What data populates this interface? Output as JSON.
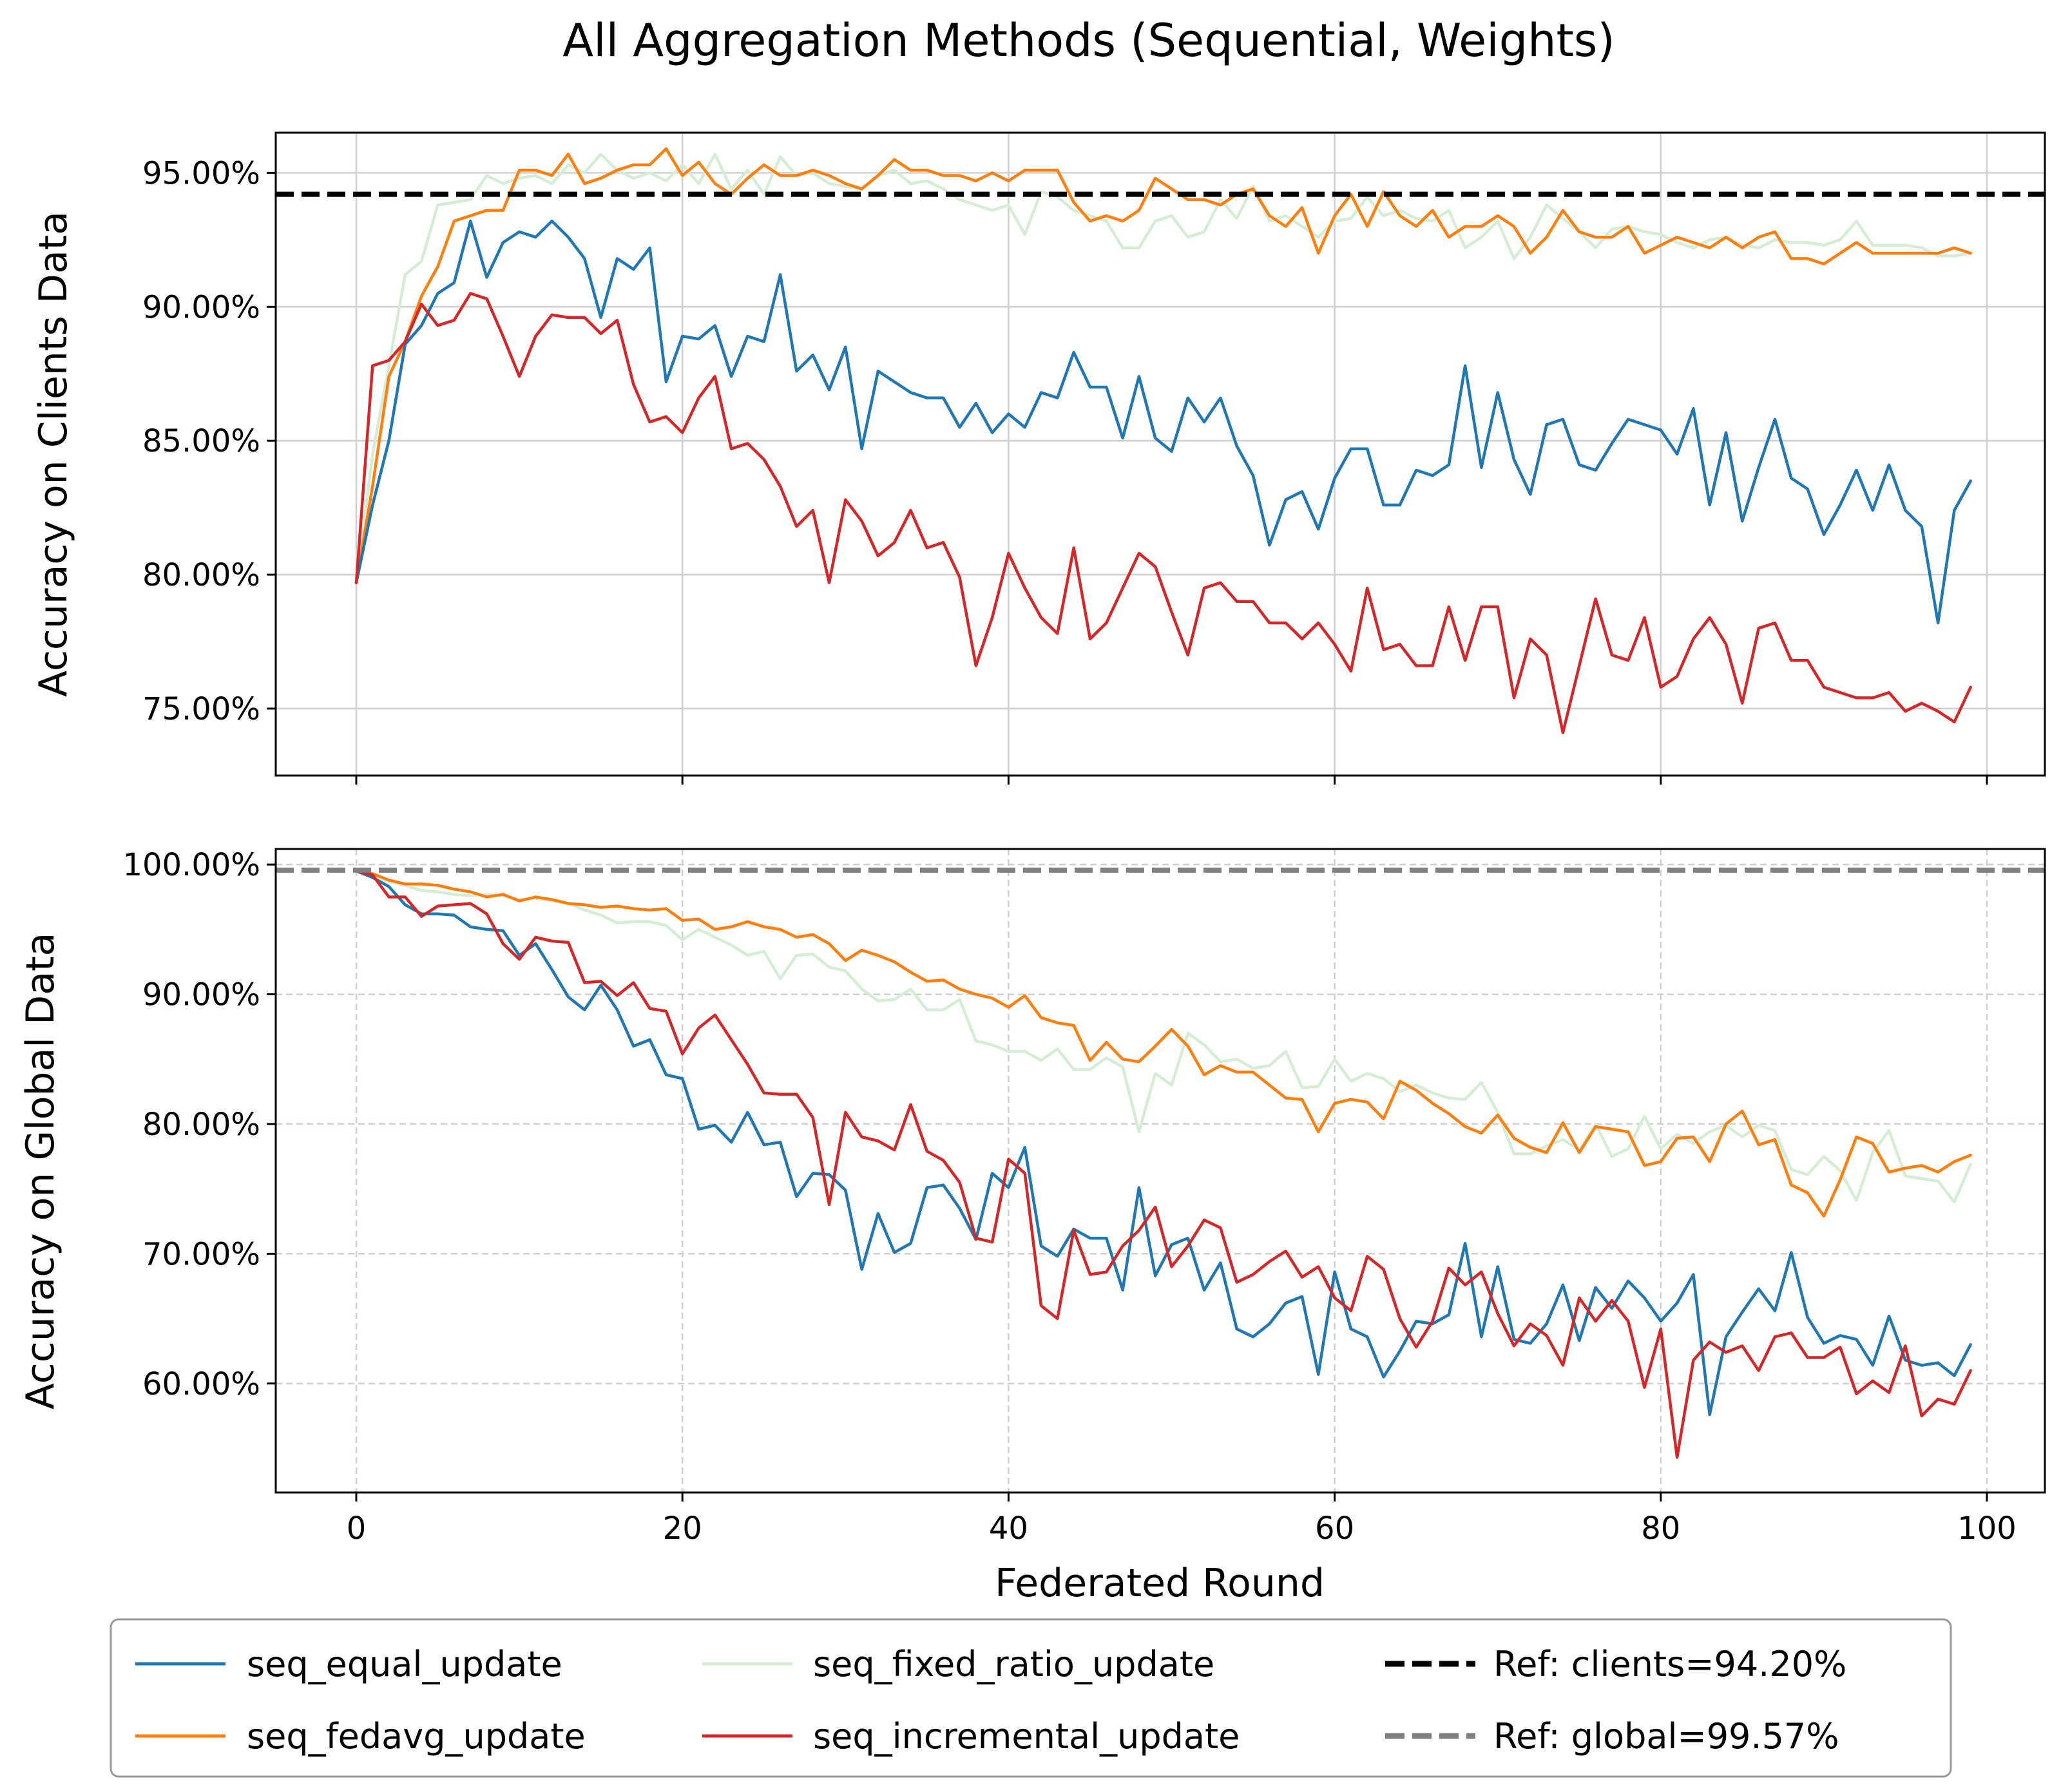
{
  "chart_data": {
    "type": "line",
    "title": "All Aggregation Methods (Sequential, Weights)",
    "xlabel": "Federated Round",
    "x_ticks": [
      "0",
      "20",
      "40",
      "60",
      "80",
      "100"
    ],
    "x_range": [
      0,
      99
    ],
    "legend": {
      "placement": "bottom-center",
      "items": [
        {
          "label": "seq_equal_update",
          "color": "#1f77b4",
          "style": "solid"
        },
        {
          "label": "seq_fedavg_update",
          "color": "#ff7f0e",
          "style": "solid"
        },
        {
          "label": "seq_fixed_ratio_update",
          "color": "#d4edd4",
          "style": "solid"
        },
        {
          "label": "seq_incremental_update",
          "color": "#d62728",
          "style": "solid"
        },
        {
          "label": "Ref: clients=94.20%",
          "color": "#000000",
          "style": "dashed"
        },
        {
          "label": "Ref: global=99.57%",
          "color": "#808080",
          "style": "dashed"
        }
      ]
    },
    "panels": [
      {
        "ylabel": "Accuracy on Clients Data",
        "ylim": [
          72.5,
          96.5
        ],
        "y_ticks": [
          "75.00%",
          "80.00%",
          "85.00%",
          "90.00%",
          "95.00%"
        ],
        "y_tick_values": [
          75,
          80,
          85,
          90,
          95
        ],
        "grid": "solid",
        "reference": {
          "value": 94.2,
          "color": "#000000"
        },
        "series": [
          {
            "name": "seq_fixed_ratio_update",
            "color": "#d4edd4",
            "values": [
              79.7,
              84.5,
              87.8,
              91.2,
              91.7,
              93.8,
              93.9,
              94.0,
              94.9,
              94.6,
              94.8,
              94.9,
              94.6,
              95.3,
              95.0,
              95.7,
              95.1,
              94.8,
              95.0,
              94.7,
              95.3,
              94.6,
              95.7,
              94.4,
              95.1,
              94.2,
              95.6,
              94.9,
              95.0,
              94.6,
              94.5,
              94.4,
              94.9,
              95.1,
              94.6,
              94.7,
              94.4,
              94.0,
              93.8,
              93.6,
              93.8,
              92.7,
              94.3,
              94.1,
              93.6,
              93.4,
              93.2,
              92.2,
              92.2,
              93.2,
              93.4,
              92.6,
              92.8,
              94.0,
              93.3,
              94.5,
              93.2,
              93.4,
              93.0,
              92.6,
              93.2,
              93.3,
              94.1,
              93.4,
              93.6,
              93.3,
              93.2,
              93.6,
              92.2,
              92.6,
              93.2,
              91.8,
              92.6,
              93.8,
              93.3,
              92.8,
              92.2,
              92.9,
              93.0,
              92.8,
              92.7,
              92.4,
              92.2,
              92.5,
              92.6,
              92.3,
              92.2,
              92.5,
              92.4,
              92.4,
              92.3,
              92.5,
              93.2,
              92.3,
              92.3,
              92.3,
              92.2,
              91.9,
              91.9,
              92.0
            ]
          },
          {
            "name": "seq_fedavg_update",
            "color": "#ff7f0e",
            "values": [
              79.7,
              83.3,
              87.4,
              88.7,
              90.4,
              91.5,
              93.2,
              93.4,
              93.6,
              93.6,
              95.1,
              95.1,
              94.9,
              95.7,
              94.6,
              94.8,
              95.1,
              95.3,
              95.3,
              95.9,
              94.9,
              95.4,
              94.6,
              94.2,
              94.8,
              95.3,
              94.9,
              94.9,
              95.1,
              94.9,
              94.6,
              94.4,
              94.9,
              95.5,
              95.1,
              95.1,
              94.9,
              94.9,
              94.7,
              95.0,
              94.7,
              95.1,
              95.1,
              95.1,
              93.9,
              93.2,
              93.4,
              93.2,
              93.6,
              94.8,
              94.4,
              94.0,
              94.0,
              93.8,
              94.2,
              94.4,
              93.4,
              93.0,
              93.7,
              92.0,
              93.4,
              94.2,
              93.0,
              94.3,
              93.4,
              93.0,
              93.6,
              92.6,
              93.0,
              93.0,
              93.4,
              93.0,
              92.0,
              92.6,
              93.6,
              92.8,
              92.6,
              92.6,
              93.0,
              92.0,
              92.3,
              92.6,
              92.4,
              92.2,
              92.6,
              92.2,
              92.6,
              92.8,
              91.8,
              91.8,
              91.6,
              92.0,
              92.4,
              92.0,
              92.0,
              92.0,
              92.0,
              92.0,
              92.2,
              92.0
            ]
          },
          {
            "name": "seq_equal_update",
            "color": "#1f77b4",
            "values": [
              79.7,
              82.6,
              85.0,
              88.6,
              89.3,
              90.5,
              90.9,
              93.2,
              91.1,
              92.4,
              92.8,
              92.6,
              93.2,
              92.6,
              91.8,
              89.6,
              91.8,
              91.4,
              92.2,
              87.2,
              88.9,
              88.8,
              89.3,
              87.4,
              88.9,
              88.7,
              91.2,
              87.6,
              88.2,
              86.9,
              88.5,
              84.7,
              87.6,
              87.2,
              86.8,
              86.6,
              86.6,
              85.5,
              86.4,
              85.3,
              86.0,
              85.5,
              86.8,
              86.6,
              88.3,
              87.0,
              87.0,
              85.1,
              87.4,
              85.1,
              84.6,
              86.6,
              85.7,
              86.6,
              84.8,
              83.7,
              81.1,
              82.8,
              83.1,
              81.7,
              83.6,
              84.7,
              84.7,
              82.6,
              82.6,
              83.9,
              83.7,
              84.1,
              87.8,
              84.0,
              86.8,
              84.3,
              83.0,
              85.6,
              85.8,
              84.1,
              83.9,
              84.9,
              85.8,
              85.6,
              85.4,
              84.5,
              86.2,
              82.6,
              85.3,
              82.0,
              84.0,
              85.8,
              83.6,
              83.2,
              81.5,
              82.6,
              83.9,
              82.4,
              84.1,
              82.4,
              81.8,
              78.2,
              82.4,
              83.5
            ]
          },
          {
            "name": "seq_incremental_update",
            "color": "#d62728",
            "values": [
              79.7,
              87.8,
              88.0,
              88.7,
              90.1,
              89.3,
              89.5,
              90.5,
              90.3,
              88.9,
              87.4,
              88.9,
              89.7,
              89.6,
              89.6,
              89.0,
              89.5,
              87.1,
              85.7,
              85.9,
              85.3,
              86.6,
              87.4,
              84.7,
              84.9,
              84.3,
              83.3,
              81.8,
              82.4,
              79.7,
              82.8,
              82.0,
              80.7,
              81.2,
              82.4,
              81.0,
              81.2,
              79.9,
              76.6,
              78.4,
              80.8,
              79.5,
              78.4,
              77.8,
              81.0,
              77.6,
              78.2,
              79.5,
              80.8,
              80.3,
              78.6,
              77.0,
              79.5,
              79.7,
              79.0,
              79.0,
              78.2,
              78.2,
              77.6,
              78.2,
              77.4,
              76.4,
              79.5,
              77.2,
              77.4,
              76.6,
              76.6,
              78.8,
              76.8,
              78.8,
              78.8,
              75.4,
              77.6,
              77.0,
              74.1,
              76.6,
              79.1,
              77.0,
              76.8,
              78.4,
              75.8,
              76.2,
              77.6,
              78.4,
              77.4,
              75.2,
              78.0,
              78.2,
              76.8,
              76.8,
              75.8,
              75.6,
              75.4,
              75.4,
              75.6,
              74.9,
              75.2,
              74.9,
              74.5,
              75.8
            ]
          }
        ]
      },
      {
        "ylabel": "Accuracy on Global Data",
        "ylim": [
          51.6,
          101.2
        ],
        "y_ticks": [
          "60.00%",
          "70.00%",
          "80.00%",
          "90.00%",
          "100.00%"
        ],
        "y_tick_values": [
          60,
          70,
          80,
          90,
          100
        ],
        "grid": "dashed",
        "reference": {
          "value": 99.57,
          "color": "#808080"
        },
        "series": [
          {
            "name": "seq_fixed_ratio_update",
            "color": "#d4edd4",
            "values": [
              99.5,
              99.0,
              98.7,
              98.4,
              98.0,
              97.9,
              97.7,
              97.6,
              97.7,
              97.6,
              97.3,
              97.4,
              97.2,
              97.0,
              96.5,
              96.1,
              95.5,
              95.6,
              95.6,
              95.3,
              94.2,
              95.0,
              94.4,
              93.8,
              93.0,
              93.3,
              91.2,
              93.0,
              93.1,
              92.1,
              91.8,
              90.4,
              89.5,
              89.6,
              90.4,
              88.8,
              88.8,
              89.6,
              86.4,
              86.1,
              85.6,
              85.6,
              84.9,
              85.8,
              84.2,
              84.2,
              85.1,
              84.4,
              79.4,
              83.9,
              83.0,
              87.0,
              86.1,
              84.8,
              85.0,
              84.3,
              84.5,
              85.6,
              82.8,
              82.9,
              85.0,
              83.3,
              83.9,
              83.5,
              82.5,
              83.0,
              82.4,
              82.0,
              81.9,
              83.2,
              80.9,
              77.7,
              77.7,
              78.3,
              78.8,
              78.0,
              80.0,
              77.5,
              78.1,
              80.6,
              78.1,
              79.2,
              78.5,
              79.4,
              79.9,
              79.0,
              79.9,
              79.5,
              76.5,
              76.1,
              77.5,
              76.4,
              74.1,
              77.8,
              79.5,
              76.0,
              75.8,
              75.6,
              74.0,
              76.9
            ]
          },
          {
            "name": "seq_fedavg_update",
            "color": "#ff7f0e",
            "values": [
              99.5,
              99.3,
              98.8,
              98.5,
              98.5,
              98.4,
              98.1,
              97.9,
              97.5,
              97.7,
              97.2,
              97.5,
              97.3,
              97.0,
              96.9,
              96.7,
              96.8,
              96.6,
              96.5,
              96.6,
              95.7,
              95.8,
              95.0,
              95.2,
              95.6,
              95.2,
              95.0,
              94.4,
              94.6,
              93.9,
              92.6,
              93.4,
              93.0,
              92.5,
              91.7,
              91.0,
              91.1,
              90.4,
              90.0,
              89.7,
              89.0,
              89.9,
              88.2,
              87.8,
              87.6,
              84.9,
              86.3,
              85.0,
              84.8,
              86.0,
              87.3,
              86.0,
              83.8,
              84.5,
              84.0,
              84.0,
              83.0,
              82.0,
              81.9,
              79.4,
              81.6,
              81.9,
              81.7,
              80.4,
              83.3,
              82.6,
              81.6,
              80.8,
              79.8,
              79.3,
              80.7,
              78.9,
              78.2,
              77.8,
              80.1,
              77.8,
              79.8,
              79.6,
              79.4,
              76.8,
              77.1,
              78.9,
              79.0,
              77.1,
              80.0,
              81.0,
              78.4,
              78.8,
              75.3,
              74.7,
              72.9,
              75.7,
              79.0,
              78.5,
              76.3,
              76.6,
              76.8,
              76.3,
              77.1,
              77.6
            ]
          },
          {
            "name": "seq_equal_update",
            "color": "#1f77b4",
            "values": [
              99.5,
              99.0,
              98.3,
              96.9,
              96.2,
              96.2,
              96.1,
              95.2,
              95.0,
              94.9,
              93.0,
              93.9,
              91.9,
              89.8,
              88.8,
              90.7,
              88.8,
              86.0,
              86.5,
              83.8,
              83.5,
              79.6,
              79.9,
              78.6,
              80.9,
              78.4,
              78.6,
              74.4,
              76.2,
              76.1,
              74.9,
              68.8,
              73.1,
              70.1,
              70.8,
              75.1,
              75.3,
              73.5,
              71.1,
              76.2,
              75.1,
              78.2,
              70.6,
              69.8,
              71.9,
              71.2,
              71.2,
              67.2,
              75.1,
              68.3,
              70.7,
              71.2,
              67.2,
              69.3,
              64.2,
              63.6,
              64.6,
              66.2,
              66.7,
              60.7,
              68.6,
              64.2,
              63.6,
              60.5,
              62.5,
              64.8,
              64.6,
              65.3,
              70.8,
              63.6,
              69.0,
              63.4,
              63.1,
              64.6,
              67.6,
              63.3,
              67.4,
              65.8,
              67.9,
              66.6,
              64.8,
              66.2,
              68.4,
              57.6,
              63.6,
              65.5,
              67.3,
              65.6,
              70.1,
              65.1,
              63.1,
              63.7,
              63.4,
              61.4,
              65.2,
              61.8,
              61.4,
              61.6,
              60.6,
              63.0
            ]
          },
          {
            "name": "seq_incremental_update",
            "color": "#d62728",
            "values": [
              99.5,
              99.2,
              97.5,
              97.5,
              96.0,
              96.8,
              96.9,
              97.0,
              96.2,
              93.9,
              92.7,
              94.4,
              94.1,
              94.0,
              90.9,
              91.0,
              89.9,
              90.9,
              88.9,
              88.7,
              85.4,
              87.4,
              88.4,
              86.5,
              84.6,
              82.4,
              82.3,
              82.3,
              80.5,
              73.8,
              80.9,
              79.0,
              78.7,
              78.0,
              81.5,
              77.9,
              77.2,
              75.5,
              71.2,
              70.9,
              77.3,
              76.2,
              66.0,
              65.0,
              71.8,
              68.4,
              68.6,
              70.6,
              71.8,
              73.6,
              69.0,
              70.6,
              72.6,
              72.0,
              67.8,
              68.4,
              69.4,
              70.2,
              68.2,
              69.0,
              66.6,
              65.6,
              69.8,
              68.8,
              65.0,
              62.8,
              64.8,
              68.9,
              67.6,
              68.6,
              65.4,
              62.9,
              64.6,
              63.7,
              61.4,
              66.6,
              64.8,
              66.4,
              64.8,
              59.7,
              64.2,
              54.3,
              61.8,
              63.2,
              62.4,
              62.9,
              61.0,
              63.6,
              63.9,
              62.0,
              62.0,
              62.8,
              59.2,
              60.2,
              59.3,
              62.9,
              57.5,
              58.8,
              58.4,
              61.0
            ]
          }
        ]
      }
    ]
  }
}
